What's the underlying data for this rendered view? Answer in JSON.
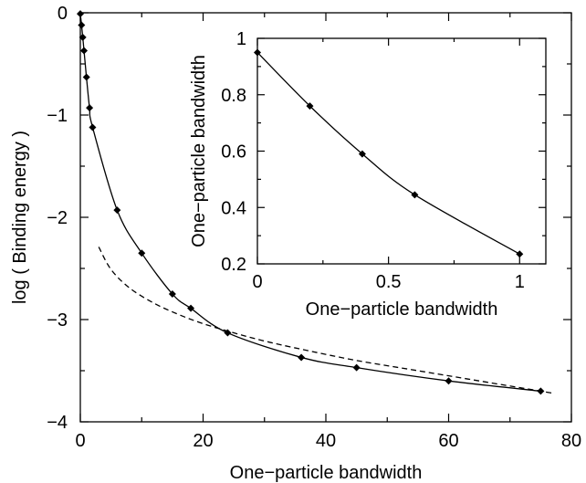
{
  "chart_data": [
    {
      "type": "line",
      "title": "",
      "xlabel": "One−particle bandwidth",
      "ylabel": "log ( Binding energy )",
      "xlim": [
        0,
        80
      ],
      "ylim": [
        -4,
        0
      ],
      "x_ticks": [
        0,
        20,
        40,
        60,
        80
      ],
      "x_tick_labels": [
        "0",
        "20",
        "40",
        "60",
        "80"
      ],
      "y_ticks": [
        0,
        -1,
        -2,
        -3,
        -4
      ],
      "y_tick_labels": [
        "0",
        "−1",
        "−2",
        "−3",
        "−4"
      ],
      "grid": false,
      "legend": "none",
      "series": [
        {
          "style": "solid-line-with-diamond-markers",
          "color": "#000000",
          "x": [
            0,
            0.2,
            0.4,
            0.6,
            1,
            1.5,
            2,
            6,
            10,
            15,
            18,
            24,
            36,
            45,
            60,
            75
          ],
          "y": [
            -0.01,
            -0.12,
            -0.24,
            -0.37,
            -0.63,
            -0.93,
            -1.12,
            -1.93,
            -2.35,
            -2.75,
            -2.89,
            -3.13,
            -3.37,
            -3.47,
            -3.6,
            -3.7
          ]
        },
        {
          "style": "dashed-line",
          "color": "#000000",
          "x": [
            3,
            5,
            8,
            12,
            16,
            20,
            25,
            30,
            36,
            45,
            55,
            65,
            75,
            77
          ],
          "y": [
            -2.29,
            -2.51,
            -2.69,
            -2.84,
            -2.95,
            -3.04,
            -3.13,
            -3.21,
            -3.29,
            -3.4,
            -3.5,
            -3.6,
            -3.7,
            -3.72
          ]
        }
      ]
    },
    {
      "type": "line",
      "title": "",
      "xlabel": "One−particle bandwidth",
      "ylabel": "One−particle bandwidth",
      "xlim": [
        0,
        1.1
      ],
      "ylim": [
        0.2,
        1.0
      ],
      "x_ticks": [
        0,
        0.5,
        1
      ],
      "x_tick_labels": [
        "0",
        "0.5",
        "1"
      ],
      "y_ticks": [
        0.2,
        0.4,
        0.6,
        0.8,
        1.0
      ],
      "y_tick_labels": [
        "0.2",
        "0.4",
        "0.6",
        "0.8",
        "1"
      ],
      "grid": false,
      "legend": "none",
      "placement": "inset top-right",
      "series": [
        {
          "style": "solid-line-with-diamond-markers",
          "color": "#000000",
          "x": [
            0,
            0.2,
            0.4,
            0.6,
            1.0
          ],
          "y": [
            0.95,
            0.76,
            0.59,
            0.445,
            0.235
          ]
        }
      ]
    }
  ]
}
